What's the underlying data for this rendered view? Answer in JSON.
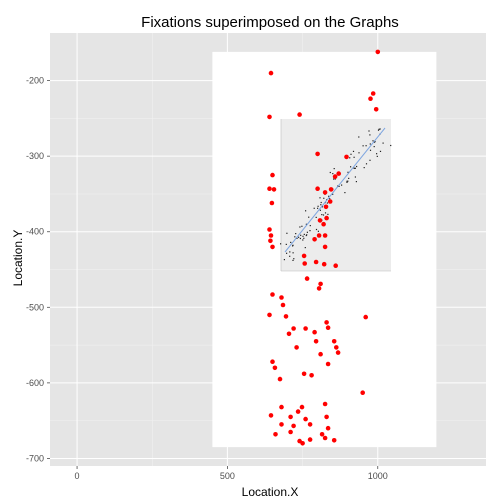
{
  "chart_data": {
    "type": "scatter",
    "title": "Fixations superimposed on the Graphs",
    "xlabel": "Location.X",
    "ylabel": "Location.Y",
    "xlim": [
      -90,
      1360
    ],
    "ylim": [
      -710,
      -137
    ],
    "x_ticks": [
      0,
      500,
      1000
    ],
    "x_tick_labels": [
      "0",
      "500",
      "1000"
    ],
    "y_ticks": [
      -200,
      -300,
      -400,
      -500,
      -600,
      -700
    ],
    "y_tick_labels": [
      "-200",
      "-300",
      "-400",
      "-500",
      "-600",
      "-700"
    ],
    "grid": true,
    "colors": {
      "panel": "#e5e5e5",
      "grid": "#ffffff",
      "points": "#ff0000",
      "overlay": "#ffffff"
    },
    "overlay_region": {
      "x_range": [
        450,
        1195
      ],
      "y_range": [
        -685,
        -162
      ]
    },
    "series": [
      {
        "points": [
          {
            "x": 1000,
            "y": -162
          },
          {
            "x": 985,
            "y": -217
          },
          {
            "x": 976,
            "y": -224
          },
          {
            "x": 995,
            "y": -238
          },
          {
            "x": 645,
            "y": -190
          },
          {
            "x": 640,
            "y": -248
          },
          {
            "x": 740,
            "y": -245
          },
          {
            "x": 800,
            "y": -297
          },
          {
            "x": 650,
            "y": -325
          },
          {
            "x": 640,
            "y": -343
          },
          {
            "x": 655,
            "y": -344
          },
          {
            "x": 648,
            "y": -362
          },
          {
            "x": 640,
            "y": -397
          },
          {
            "x": 645,
            "y": -405
          },
          {
            "x": 643,
            "y": -412
          },
          {
            "x": 650,
            "y": -420
          },
          {
            "x": 896,
            "y": -301
          },
          {
            "x": 870,
            "y": -323
          },
          {
            "x": 858,
            "y": -327
          },
          {
            "x": 845,
            "y": -344
          },
          {
            "x": 825,
            "y": -348
          },
          {
            "x": 800,
            "y": -343
          },
          {
            "x": 842,
            "y": -360
          },
          {
            "x": 828,
            "y": -367
          },
          {
            "x": 830,
            "y": -382
          },
          {
            "x": 808,
            "y": -385
          },
          {
            "x": 820,
            "y": -390
          },
          {
            "x": 805,
            "y": -405
          },
          {
            "x": 825,
            "y": -405
          },
          {
            "x": 790,
            "y": -410
          },
          {
            "x": 825,
            "y": -420
          },
          {
            "x": 755,
            "y": -432
          },
          {
            "x": 757,
            "y": -442
          },
          {
            "x": 795,
            "y": -440
          },
          {
            "x": 822,
            "y": -443
          },
          {
            "x": 860,
            "y": -445
          },
          {
            "x": 765,
            "y": -462
          },
          {
            "x": 810,
            "y": -469
          },
          {
            "x": 805,
            "y": -475
          },
          {
            "x": 650,
            "y": -483
          },
          {
            "x": 680,
            "y": -487
          },
          {
            "x": 685,
            "y": -497
          },
          {
            "x": 695,
            "y": -512
          },
          {
            "x": 640,
            "y": -510
          },
          {
            "x": 960,
            "y": -513
          },
          {
            "x": 830,
            "y": -520
          },
          {
            "x": 835,
            "y": -527
          },
          {
            "x": 760,
            "y": -528
          },
          {
            "x": 720,
            "y": -528
          },
          {
            "x": 705,
            "y": -535
          },
          {
            "x": 790,
            "y": -533
          },
          {
            "x": 795,
            "y": -545
          },
          {
            "x": 855,
            "y": -545
          },
          {
            "x": 862,
            "y": -553
          },
          {
            "x": 868,
            "y": -560
          },
          {
            "x": 730,
            "y": -553
          },
          {
            "x": 810,
            "y": -562
          },
          {
            "x": 650,
            "y": -572
          },
          {
            "x": 658,
            "y": -580
          },
          {
            "x": 835,
            "y": -575
          },
          {
            "x": 755,
            "y": -588
          },
          {
            "x": 675,
            "y": -595
          },
          {
            "x": 780,
            "y": -590
          },
          {
            "x": 950,
            "y": -613
          },
          {
            "x": 825,
            "y": -628
          },
          {
            "x": 680,
            "y": -632
          },
          {
            "x": 748,
            "y": -632
          },
          {
            "x": 735,
            "y": -638
          },
          {
            "x": 645,
            "y": -643
          },
          {
            "x": 710,
            "y": -645
          },
          {
            "x": 760,
            "y": -648
          },
          {
            "x": 830,
            "y": -645
          },
          {
            "x": 680,
            "y": -655
          },
          {
            "x": 775,
            "y": -655
          },
          {
            "x": 720,
            "y": -657
          },
          {
            "x": 835,
            "y": -660
          },
          {
            "x": 710,
            "y": -665
          },
          {
            "x": 660,
            "y": -668
          },
          {
            "x": 815,
            "y": -668
          },
          {
            "x": 740,
            "y": -677
          },
          {
            "x": 750,
            "y": -680
          },
          {
            "x": 855,
            "y": -676
          },
          {
            "x": 775,
            "y": -675
          },
          {
            "x": 825,
            "y": -673
          }
        ]
      }
    ]
  }
}
